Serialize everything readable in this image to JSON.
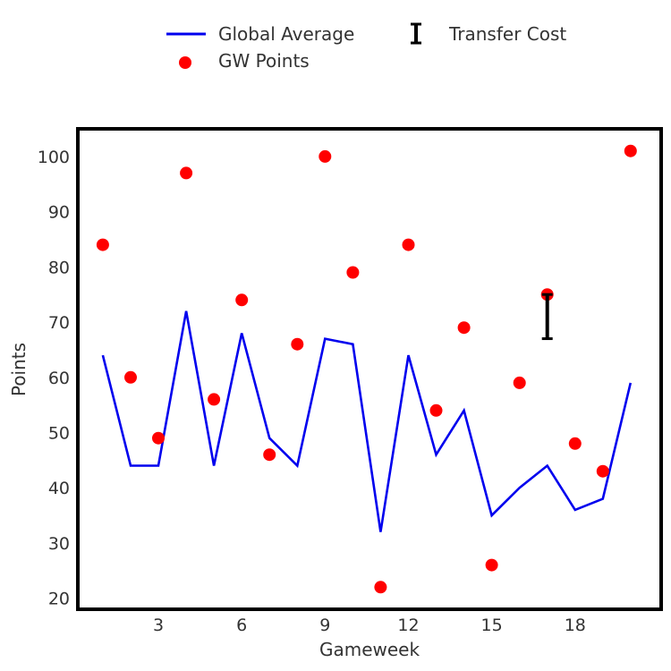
{
  "chart_data": {
    "type": "line",
    "xlabel": "Gameweek",
    "ylabel": "Points",
    "xlim": [
      0.1,
      21.1
    ],
    "ylim": [
      18,
      105
    ],
    "xticks": [
      3,
      6,
      9,
      12,
      15,
      18
    ],
    "yticks": [
      20,
      30,
      40,
      50,
      60,
      70,
      80,
      90,
      100
    ],
    "grid": false,
    "legend_position": "top-center",
    "x": [
      1,
      2,
      3,
      4,
      5,
      6,
      7,
      8,
      9,
      10,
      11,
      12,
      13,
      14,
      15,
      16,
      17,
      18,
      19,
      20
    ],
    "series": [
      {
        "name": "Global Average",
        "kind": "line",
        "color": "#0000ee",
        "values": [
          64,
          44,
          44,
          72,
          44,
          68,
          49,
          44,
          67,
          66,
          32,
          64,
          46,
          54,
          35,
          40,
          44,
          36,
          38,
          59
        ]
      },
      {
        "name": "GW Points",
        "kind": "scatter",
        "color": "#ff0000",
        "values": [
          84,
          60,
          49,
          97,
          56,
          74,
          46,
          66,
          100,
          79,
          22,
          84,
          54,
          69,
          26,
          59,
          75,
          48,
          43,
          101
        ]
      },
      {
        "name": "Transfer Cost",
        "kind": "errorbar",
        "color": "#000000",
        "points": [
          {
            "x": 17,
            "top": 75,
            "bottom": 67
          }
        ]
      }
    ]
  }
}
